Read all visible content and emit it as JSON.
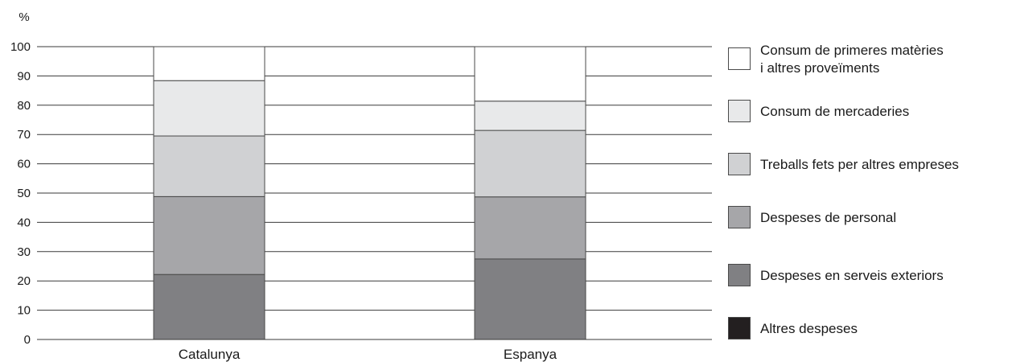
{
  "chart_data": {
    "type": "bar",
    "stacked": true,
    "ylabel": "%",
    "ylim": [
      0,
      100
    ],
    "yticks": [
      0,
      10,
      20,
      30,
      40,
      50,
      60,
      70,
      80,
      90,
      100
    ],
    "categories": [
      "Catalunya",
      "Espanya"
    ],
    "grid": true,
    "legend_position": "right",
    "series": [
      {
        "name": "Altres despeses",
        "color": "#231f20",
        "values": [
          0,
          0
        ]
      },
      {
        "name": "Despeses en serveis exteriors",
        "color": "#808083",
        "values": [
          22.2,
          27.5
        ]
      },
      {
        "name": "Despeses de personal",
        "color": "#a6a6a9",
        "values": [
          26.6,
          21.2
        ]
      },
      {
        "name": "Treballs fets per altres empreses",
        "color": "#d0d1d3",
        "values": [
          20.7,
          22.7
        ]
      },
      {
        "name": "Consum de mercaderies",
        "color": "#e8e9ea",
        "values": [
          18.9,
          10.0
        ]
      },
      {
        "name": "Consum de primeres matèries i altres proveïments",
        "legend_lines": [
          "Consum de primeres matèries",
          "i altres proveïments"
        ],
        "color": "#ffffff",
        "values": [
          11.6,
          18.6
        ]
      }
    ]
  }
}
